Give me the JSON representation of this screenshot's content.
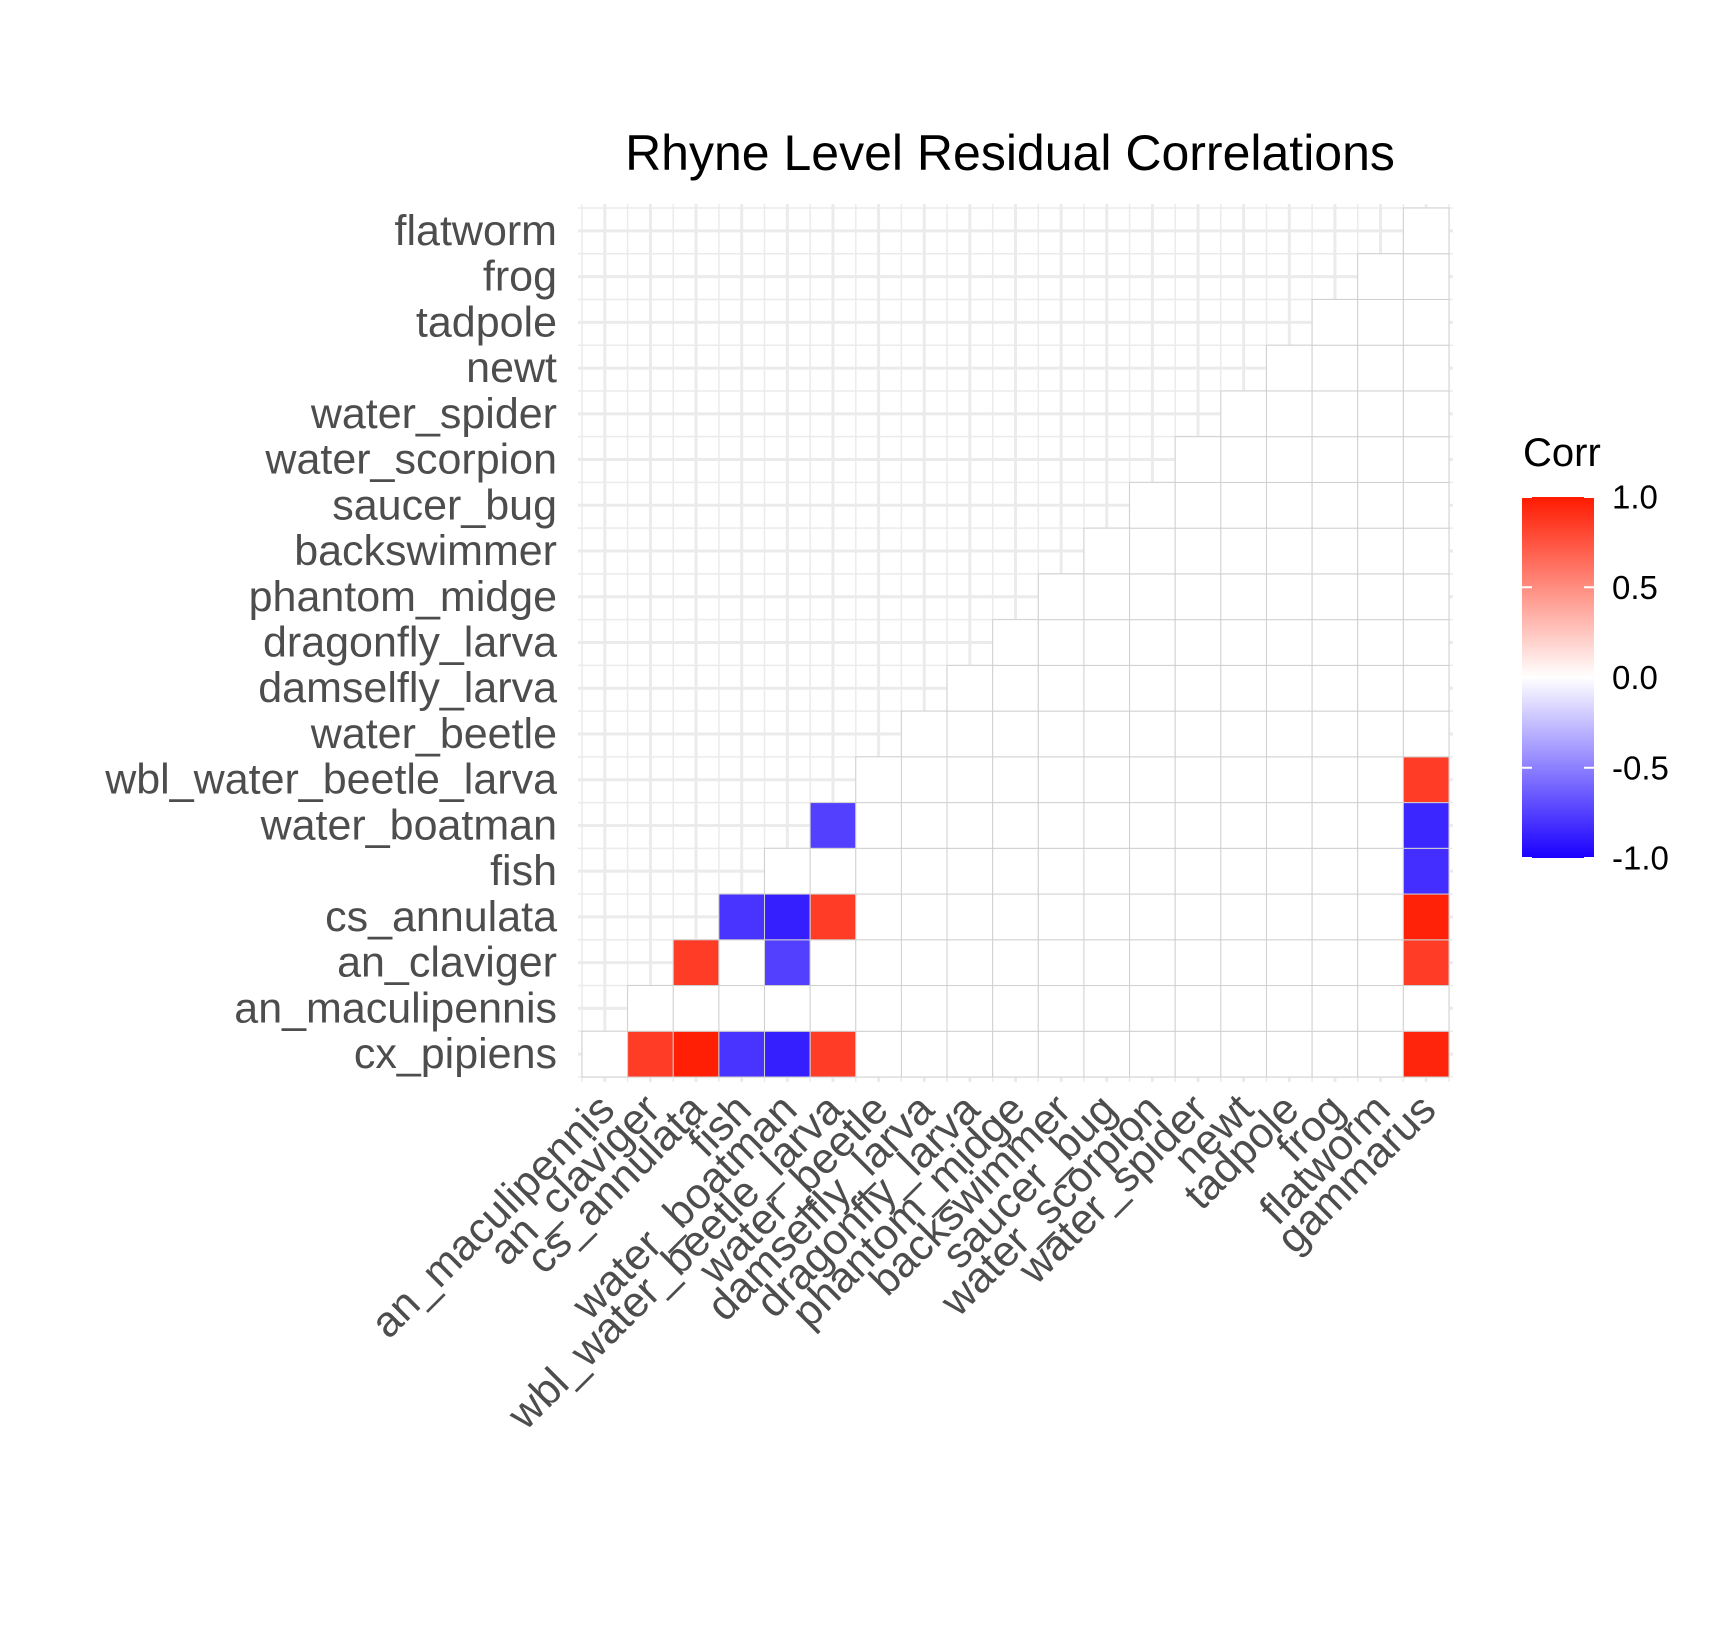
{
  "chart_data": {
    "type": "heatmap",
    "title": "Rhyne Level Residual Correlations",
    "xlabel": "",
    "ylabel": "",
    "x_categories": [
      "an_maculipennis",
      "an_claviger",
      "cs_annulata",
      "fish",
      "water_boatman",
      "wbl_water_beetle_larva",
      "water_beetle",
      "damselfly_larva",
      "dragonfly_larva",
      "phantom_midge",
      "backswimmer",
      "saucer_bug",
      "water_scorpion",
      "water_spider",
      "newt",
      "tadpole",
      "frog",
      "flatworm",
      "gammarus"
    ],
    "y_categories": [
      "cx_pipiens",
      "an_maculipennis",
      "an_claviger",
      "cs_annulata",
      "fish",
      "water_boatman",
      "wbl_water_beetle_larva",
      "water_beetle",
      "damselfly_larva",
      "dragonfly_larva",
      "phantom_midge",
      "backswimmer",
      "saucer_bug",
      "water_scorpion",
      "water_spider",
      "newt",
      "tadpole",
      "frog",
      "flatworm"
    ],
    "nonzero_cells": [
      {
        "x": "an_claviger",
        "y": "cx_pipiens",
        "value": 0.85
      },
      {
        "x": "cs_annulata",
        "y": "cx_pipiens",
        "value": 0.98
      },
      {
        "x": "fish",
        "y": "cx_pipiens",
        "value": -0.8
      },
      {
        "x": "water_boatman",
        "y": "cx_pipiens",
        "value": -0.88
      },
      {
        "x": "wbl_water_beetle_larva",
        "y": "cx_pipiens",
        "value": 0.85
      },
      {
        "x": "gammarus",
        "y": "cx_pipiens",
        "value": 0.95
      },
      {
        "x": "cs_annulata",
        "y": "an_claviger",
        "value": 0.85
      },
      {
        "x": "water_boatman",
        "y": "an_claviger",
        "value": -0.75
      },
      {
        "x": "gammarus",
        "y": "an_claviger",
        "value": 0.85
      },
      {
        "x": "fish",
        "y": "cs_annulata",
        "value": -0.8
      },
      {
        "x": "water_boatman",
        "y": "cs_annulata",
        "value": -0.88
      },
      {
        "x": "wbl_water_beetle_larva",
        "y": "cs_annulata",
        "value": 0.85
      },
      {
        "x": "gammarus",
        "y": "cs_annulata",
        "value": 0.97
      },
      {
        "x": "gammarus",
        "y": "fish",
        "value": -0.82
      },
      {
        "x": "wbl_water_beetle_larva",
        "y": "water_boatman",
        "value": -0.75
      },
      {
        "x": "gammarus",
        "y": "water_boatman",
        "value": -0.85
      },
      {
        "x": "gammarus",
        "y": "wbl_water_beetle_larva",
        "value": 0.85
      }
    ],
    "legend": {
      "title": "Corr",
      "ticks": [
        "1.0",
        "0.5",
        "0.0",
        "-0.5",
        "-1.0"
      ],
      "tick_values": [
        1.0,
        0.5,
        0.0,
        -0.5,
        -1.0
      ],
      "min": -1.0,
      "max": 1.0,
      "low_color": "#1A00FF",
      "mid_color": "#FFFFFF",
      "high_color": "#FF1A00",
      "placement": "right"
    },
    "grid": true,
    "layout": "lower-triangle"
  }
}
